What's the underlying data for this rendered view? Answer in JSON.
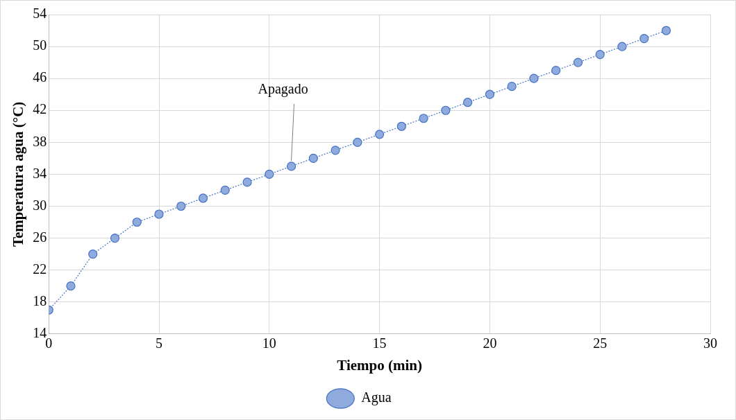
{
  "chart_data": {
    "type": "line",
    "xlabel": "Tiempo (min)",
    "ylabel": "Temperatura agua (°C)",
    "x": [
      0,
      1,
      2,
      3,
      4,
      5,
      6,
      7,
      8,
      9,
      10,
      11,
      12,
      13,
      14,
      15,
      16,
      17,
      18,
      19,
      20,
      21,
      22,
      23,
      24,
      25,
      26,
      27,
      28
    ],
    "series": [
      {
        "name": "Agua",
        "color": "#4472c4",
        "values": [
          17,
          20,
          24,
          26,
          28,
          29,
          30,
          31,
          32,
          33,
          34,
          35,
          36,
          37,
          38,
          39,
          40,
          41,
          42,
          43,
          44,
          45,
          46,
          47,
          48,
          49,
          50,
          51,
          52
        ]
      }
    ],
    "xlim": [
      0,
      30
    ],
    "xticks": [
      0,
      5,
      10,
      15,
      20,
      25,
      30
    ],
    "ylim": [
      14,
      54
    ],
    "yticks": [
      14,
      18,
      22,
      26,
      30,
      34,
      38,
      42,
      46,
      50,
      54
    ],
    "annotations": [
      {
        "text": "Apagado",
        "x": 11,
        "y": 35
      }
    ],
    "grid": true,
    "legend": "bottom",
    "marker": "circle",
    "line_style": "dotted"
  }
}
